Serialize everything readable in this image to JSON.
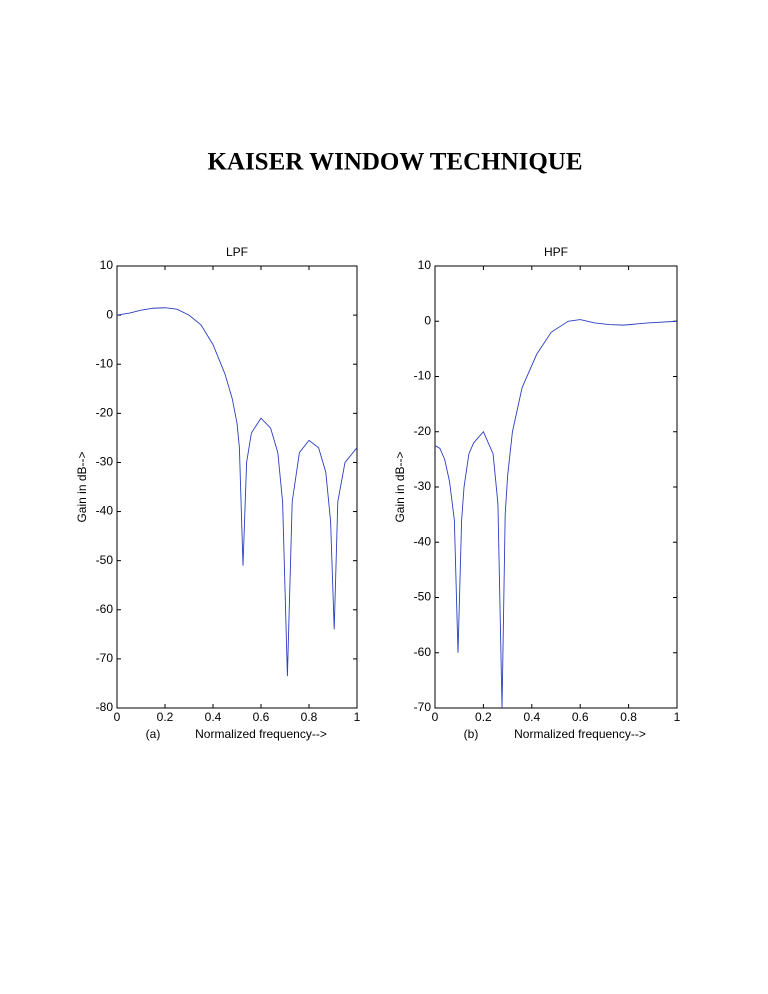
{
  "page_title": "KAISER WINDOW TECHNIQUE",
  "chart_data": [
    {
      "type": "line",
      "title": "LPF",
      "xlabel": "Normalized frequency-->",
      "ylabel": "Gain in dB-->",
      "caption": "(a)",
      "x": [
        0,
        0.05,
        0.1,
        0.15,
        0.2,
        0.25,
        0.3,
        0.35,
        0.4,
        0.45,
        0.48,
        0.5,
        0.51,
        0.525,
        0.54,
        0.56,
        0.6,
        0.64,
        0.67,
        0.69,
        0.71,
        0.73,
        0.76,
        0.8,
        0.84,
        0.87,
        0.89,
        0.905,
        0.92,
        0.95,
        1
      ],
      "values": [
        0,
        0.4,
        1.0,
        1.4,
        1.5,
        1.2,
        0,
        -2,
        -6,
        -12,
        -17,
        -22,
        -27,
        -51,
        -30,
        -24,
        -21,
        -23,
        -28,
        -38,
        -73.5,
        -38,
        -28,
        -25.5,
        -27,
        -32,
        -42,
        -64,
        -38,
        -30,
        -27
      ],
      "color": "#2a3fc0",
      "xlim": [
        0,
        1
      ],
      "xticks": [
        0,
        0.2,
        0.4,
        0.6,
        0.8,
        1
      ],
      "ylim": [
        -80,
        10
      ],
      "yticks": [
        -80,
        -70,
        -60,
        -50,
        -40,
        -30,
        -20,
        -10,
        0,
        10
      ]
    },
    {
      "type": "line",
      "title": "HPF",
      "xlabel": "Normalized frequency-->",
      "ylabel": "Gain in dB-->",
      "caption": "(b)",
      "x": [
        0,
        0.02,
        0.04,
        0.06,
        0.08,
        0.095,
        0.11,
        0.12,
        0.14,
        0.16,
        0.2,
        0.24,
        0.26,
        0.277,
        0.29,
        0.3,
        0.32,
        0.36,
        0.42,
        0.48,
        0.55,
        0.6,
        0.66,
        0.72,
        0.78,
        0.88,
        1
      ],
      "values": [
        -22.5,
        -23,
        -25,
        -29,
        -36,
        -60,
        -36,
        -30,
        -24,
        -22,
        -20,
        -24,
        -33,
        -70,
        -35,
        -28,
        -20,
        -12,
        -6,
        -2,
        0,
        0.3,
        -0.3,
        -0.6,
        -0.7,
        -0.3,
        0
      ],
      "color": "#2a3fc0",
      "xlim": [
        0,
        1
      ],
      "xticks": [
        0,
        0.2,
        0.4,
        0.6,
        0.8,
        1
      ],
      "ylim": [
        -70,
        10
      ],
      "yticks": [
        -70,
        -60,
        -50,
        -40,
        -30,
        -20,
        -10,
        0,
        10
      ]
    }
  ]
}
